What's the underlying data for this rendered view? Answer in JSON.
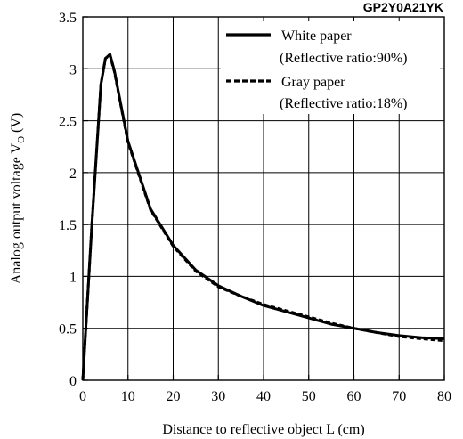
{
  "chart_data": {
    "type": "line",
    "title": "GP2Y0A21YK",
    "xlabel": "Distance to reflective object L (cm)",
    "ylabel": "Analog output voltage V",
    "ylabel_subscript": "O",
    "ylabel_unit": " (V)",
    "xlim": [
      0,
      80
    ],
    "ylim": [
      0,
      3.5
    ],
    "x_ticks": [
      0,
      10,
      20,
      30,
      40,
      50,
      60,
      70,
      80
    ],
    "y_ticks": [
      0,
      0.5,
      1,
      1.5,
      2,
      2.5,
      3,
      3.5
    ],
    "x_tick_labels": [
      "0",
      "10",
      "20",
      "30",
      "40",
      "50",
      "60",
      "70",
      "80"
    ],
    "y_tick_labels": [
      "0",
      "0.5",
      "1",
      "1.5",
      "2",
      "2.5",
      "3",
      "3.5"
    ],
    "grid": true,
    "legend_position": "top-right",
    "series": [
      {
        "name": "White paper",
        "legend_note": "(Reflective ratio:90%)",
        "style": "solid",
        "x": [
          0,
          2,
          4,
          5,
          6,
          7,
          8,
          10,
          15,
          20,
          25,
          30,
          35,
          40,
          45,
          50,
          55,
          60,
          65,
          70,
          75,
          80
        ],
        "y": [
          0,
          1.5,
          2.85,
          3.1,
          3.14,
          2.98,
          2.75,
          2.3,
          1.65,
          1.3,
          1.06,
          0.91,
          0.81,
          0.72,
          0.66,
          0.6,
          0.54,
          0.5,
          0.46,
          0.43,
          0.41,
          0.4
        ]
      },
      {
        "name": "Gray paper",
        "legend_note": "(Reflective ratio:18%)",
        "style": "dashed",
        "x": [
          0,
          2,
          4,
          5,
          6,
          7,
          8,
          10,
          15,
          20,
          25,
          30,
          35,
          40,
          45,
          50,
          55,
          60,
          65,
          70,
          75,
          80
        ],
        "y": [
          0,
          1.5,
          2.85,
          3.1,
          3.13,
          2.97,
          2.74,
          2.29,
          1.64,
          1.29,
          1.05,
          0.9,
          0.81,
          0.73,
          0.67,
          0.61,
          0.55,
          0.5,
          0.46,
          0.42,
          0.4,
          0.38
        ]
      }
    ]
  },
  "colors": {
    "line": "#000000",
    "grid": "#000000",
    "background": "#ffffff"
  }
}
